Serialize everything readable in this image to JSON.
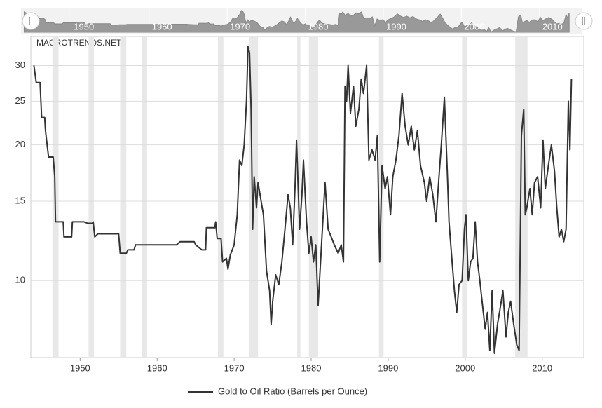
{
  "chart_data": {
    "type": "line",
    "watermark": "MACROTRENDS.NET",
    "log_scale": true,
    "grid": true,
    "legend": "bottom",
    "x": [
      1944.0,
      1944.3,
      1944.8,
      1945.0,
      1945.4,
      1945.5,
      1945.9,
      1946.5,
      1946.7,
      1946.8,
      1947.8,
      1947.9,
      1948.9,
      1949.0,
      1950.5,
      1951.0,
      1951.6,
      1951.7,
      1951.9,
      1952.3,
      1955.0,
      1955.2,
      1956.0,
      1956.2,
      1957.0,
      1957.2,
      1962.5,
      1963.0,
      1964.8,
      1965.0,
      1965.8,
      1966.3,
      1966.4,
      1967.5,
      1967.6,
      1967.8,
      1968.3,
      1968.5,
      1969.0,
      1969.2,
      1969.5,
      1970.0,
      1970.4,
      1970.7,
      1971.0,
      1971.3,
      1971.6,
      1971.8,
      1972.0,
      1972.2,
      1972.4,
      1972.6,
      1972.9,
      1973.1,
      1973.5,
      1973.8,
      1974.2,
      1974.6,
      1974.8,
      1975.0,
      1975.4,
      1975.8,
      1976.2,
      1976.6,
      1977.0,
      1977.3,
      1977.6,
      1977.9,
      1978.1,
      1978.5,
      1978.8,
      1979.0,
      1979.4,
      1979.7,
      1980.0,
      1980.3,
      1980.6,
      1980.9,
      1981.4,
      1981.8,
      1982.2,
      1982.6,
      1983.0,
      1983.5,
      1983.9,
      1984.2,
      1984.4,
      1984.6,
      1984.8,
      1985.1,
      1985.5,
      1985.8,
      1986.2,
      1986.5,
      1986.8,
      1987.2,
      1987.5,
      1987.9,
      1988.3,
      1988.6,
      1988.9,
      1989.2,
      1989.6,
      1989.9,
      1990.3,
      1990.6,
      1991.0,
      1991.4,
      1991.8,
      1992.2,
      1992.6,
      1993.0,
      1993.4,
      1993.8,
      1994.2,
      1994.7,
      1995.0,
      1995.4,
      1995.8,
      1996.2,
      1996.6,
      1996.9,
      1997.3,
      1997.7,
      1997.9,
      1998.3,
      1998.6,
      1998.9,
      1999.2,
      1999.6,
      1999.9,
      2000.1,
      2000.4,
      2000.7,
      2001.0,
      2001.3,
      2001.6,
      2001.9,
      2002.2,
      2002.6,
      2002.9,
      2003.2,
      2003.5,
      2003.8,
      2004.2,
      2004.6,
      2004.9,
      2005.3,
      2005.6,
      2005.9,
      2006.3,
      2006.7,
      2007.0,
      2007.3,
      2007.6,
      2007.8,
      2008.0,
      2008.4,
      2008.7,
      2009.0,
      2009.4,
      2009.8,
      2010.1,
      2010.4,
      2010.8,
      2011.2,
      2011.6,
      2011.9,
      2012.2,
      2012.5,
      2012.8,
      2013.1,
      2013.4,
      2013.6,
      2013.8
    ],
    "series": [
      {
        "name": "Gold to Oil Ratio (Barrels per Ounce)",
        "color": "#333333",
        "values": [
          30,
          27.5,
          27.5,
          23,
          23,
          21.5,
          18.8,
          18.8,
          17,
          13.5,
          13.5,
          12.5,
          12.5,
          13.5,
          13.5,
          13.4,
          13.4,
          13.5,
          12.5,
          12.7,
          12.7,
          11.5,
          11.5,
          11.7,
          11.7,
          12.0,
          12.0,
          12.2,
          12.2,
          12.0,
          11.7,
          11.7,
          13.1,
          13.1,
          13.5,
          12.4,
          12.4,
          11.0,
          11.2,
          10.6,
          11.4,
          12.0,
          14,
          18.5,
          18,
          20,
          25,
          33,
          32,
          24,
          13,
          17,
          14.5,
          16.5,
          15,
          14,
          10.5,
          9.5,
          8,
          9,
          10.3,
          9.8,
          11,
          13,
          15.5,
          14.5,
          12,
          16,
          20.5,
          13,
          15.5,
          18.5,
          13.5,
          11.5,
          12.5,
          11,
          12,
          8.8,
          12.5,
          16.5,
          13,
          12.5,
          12,
          11.5,
          12,
          11,
          27,
          25,
          30,
          23.5,
          27,
          22,
          24,
          28,
          26,
          30,
          18.5,
          19.5,
          18.5,
          21,
          11,
          18,
          16,
          17,
          14,
          17,
          18.5,
          21,
          26,
          22,
          20,
          22,
          19.5,
          21.5,
          18,
          16.5,
          15,
          17,
          15.5,
          13.5,
          17,
          20,
          25.5,
          17,
          13.5,
          11,
          9.5,
          8.5,
          9.8,
          10,
          13,
          14,
          10,
          11,
          11.2,
          13.5,
          11,
          10,
          9,
          7.8,
          8.5,
          7,
          9.5,
          6.9,
          8,
          8.8,
          9.5,
          7.5,
          8.5,
          9,
          8,
          7.2,
          7,
          21,
          24,
          14,
          14.5,
          16,
          14,
          16.5,
          17,
          14.5,
          20.5,
          16,
          18,
          20,
          17.5,
          14.5,
          12.5,
          13,
          12.2,
          13,
          25,
          19.5,
          28
        ]
      }
    ],
    "shaded_periods": [
      [
        1946.4,
        1947.2
      ],
      [
        1951.1,
        1951.8
      ],
      [
        1955.2,
        1956.0
      ],
      [
        1958.0,
        1958.7
      ],
      [
        1967.9,
        1968.6
      ],
      [
        1971.9,
        1973.1
      ],
      [
        1978.2,
        1978.6
      ],
      [
        1979.7,
        1980.9
      ],
      [
        1988.8,
        1989.4
      ],
      [
        1999.6,
        2000.3
      ],
      [
        2006.5,
        2008.1
      ]
    ],
    "shade_color": "#e8e8e8",
    "xlim": [
      1943.6,
      2015.4
    ],
    "xticks": [
      1950,
      1960,
      1970,
      1980,
      1990,
      2000,
      2010
    ],
    "ylim": [
      6.75,
      34.8
    ],
    "yticks": [
      10,
      15,
      20,
      25,
      30
    ]
  }
}
